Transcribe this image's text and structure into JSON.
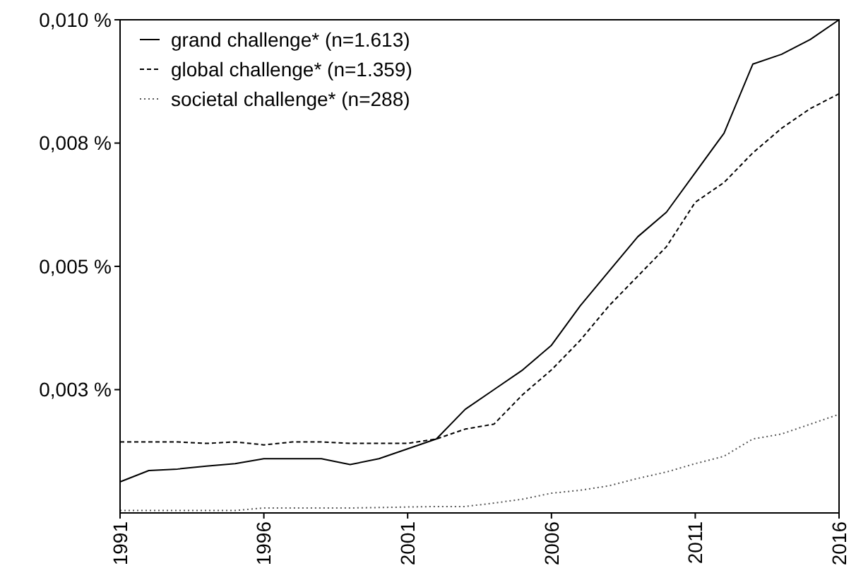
{
  "chart_data": {
    "type": "line",
    "x": [
      1991,
      1992,
      1993,
      1994,
      1995,
      1996,
      1997,
      1998,
      1999,
      2000,
      2001,
      2002,
      2003,
      2004,
      2005,
      2006,
      2007,
      2008,
      2009,
      2010,
      2011,
      2012,
      2013,
      2014,
      2015,
      2016
    ],
    "series": [
      {
        "name": "grand challenge* (n=1.613)",
        "color": "#000000",
        "line_style": "solid",
        "values": [
          0.00063,
          0.00086,
          0.00089,
          0.00095,
          0.001,
          0.0011,
          0.0011,
          0.0011,
          0.00098,
          0.0011,
          0.0013,
          0.0015,
          0.0021,
          0.0025,
          0.0029,
          0.0034,
          0.0042,
          0.0049,
          0.0056,
          0.0061,
          0.0069,
          0.0077,
          0.0091,
          0.0093,
          0.0096,
          0.01
        ]
      },
      {
        "name": "global challenge* (n=1.359)",
        "color": "#000000",
        "line_style": "dashed",
        "values": [
          0.00144,
          0.00144,
          0.00144,
          0.00141,
          0.00144,
          0.00138,
          0.00144,
          0.00144,
          0.00141,
          0.00141,
          0.00141,
          0.0015,
          0.0017,
          0.0018,
          0.0024,
          0.0029,
          0.0035,
          0.0042,
          0.0048,
          0.0054,
          0.0063,
          0.0067,
          0.0073,
          0.0078,
          0.0082,
          0.0085
        ]
      },
      {
        "name": "societal challenge* (n=288)",
        "color": "#555555",
        "line_style": "dotted",
        "values": [
          5e-05,
          5e-05,
          5e-05,
          5e-05,
          5e-05,
          0.0001,
          0.0001,
          0.0001,
          0.0001,
          0.00011,
          0.00012,
          0.00013,
          0.00013,
          0.0002,
          0.00028,
          0.0004,
          0.00046,
          0.00055,
          0.0007,
          0.00083,
          0.001,
          0.00115,
          0.0015,
          0.0016,
          0.0018,
          0.002
        ]
      }
    ],
    "xlim": [
      1991,
      2016
    ],
    "xticks": [
      1991,
      1996,
      2001,
      2006,
      2011,
      2016
    ],
    "ylim": [
      0,
      0.01
    ],
    "yticks": [
      {
        "value": 0.0025,
        "label": "0,003 %"
      },
      {
        "value": 0.005,
        "label": "0,005 %"
      },
      {
        "value": 0.0075,
        "label": "0,008 %"
      },
      {
        "value": 0.01,
        "label": "0,010 %"
      }
    ],
    "grid": false,
    "legend": "top left"
  }
}
